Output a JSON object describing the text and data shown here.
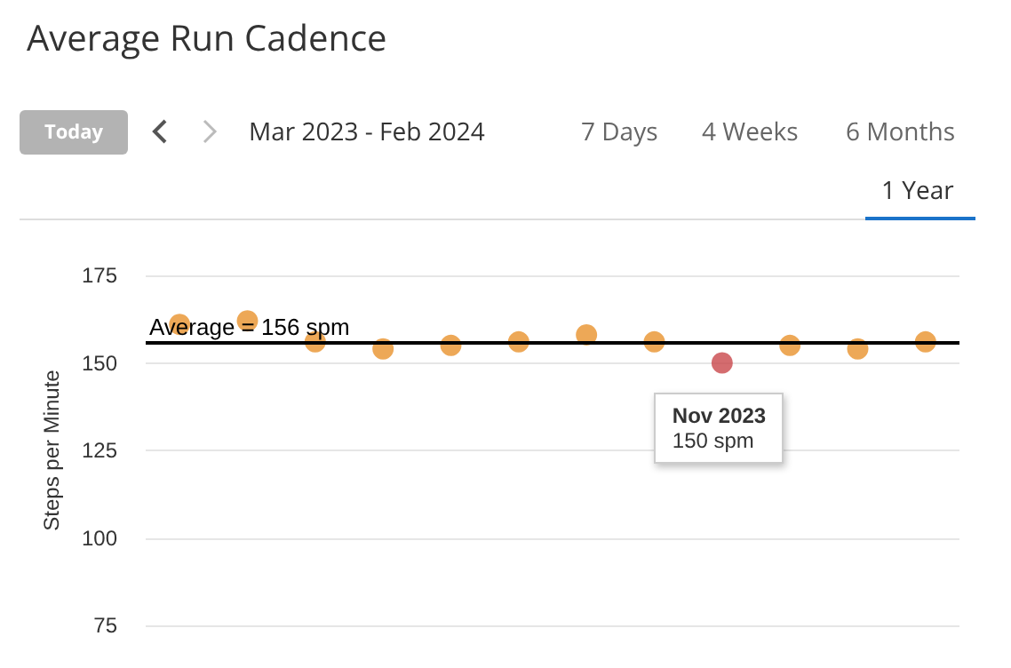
{
  "chart_data": {
    "type": "scatter",
    "title": "Average Run Cadence",
    "ylabel": "Steps per Minute",
    "categories": [
      null,
      null,
      null,
      null,
      null,
      null,
      null,
      null,
      null,
      null,
      null,
      null
    ],
    "values": [
      161,
      162,
      156,
      154,
      155,
      156,
      158,
      156,
      150,
      155,
      154,
      156
    ],
    "colors": [
      "#e8922d",
      "#e8922d",
      "#e8922d",
      "#e8922d",
      "#e8922d",
      "#e8922d",
      "#e8922d",
      "#e8922d",
      "#c9474b",
      "#e8922d",
      "#e8922d",
      "#e8922d"
    ],
    "marker": "circle",
    "grid": "y",
    "ylim": [
      75,
      175
    ],
    "yticks": [
      75,
      100,
      125,
      150,
      175
    ],
    "ref_lines": [
      {
        "axis": "y",
        "value": 156,
        "label": "Average = 156 spm",
        "color": "#000000",
        "line_style": "solid"
      }
    ],
    "annotations": [
      {
        "text": "Nov 2023\n150 spm",
        "y": 150
      },
      "Today",
      "Mar 2023 - Feb 2024",
      "7 Days",
      "4 Weeks",
      "6 Months",
      "1 Year"
    ]
  }
}
